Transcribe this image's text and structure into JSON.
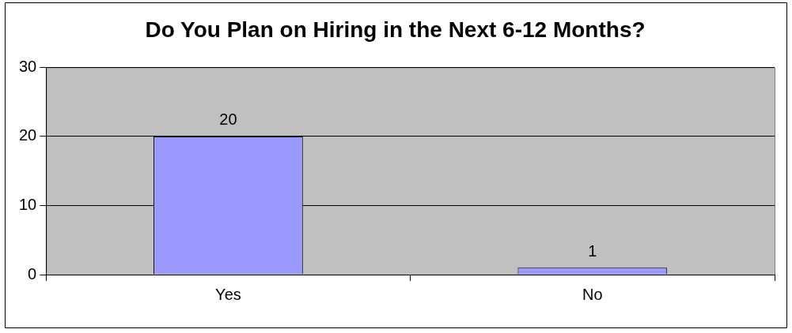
{
  "chart_data": {
    "type": "bar",
    "title": "Do You Plan on Hiring in the Next 6-12 Months?",
    "categories": [
      "Yes",
      "No"
    ],
    "values": [
      20,
      1
    ],
    "color": "#9999ff",
    "ylim": [
      0,
      30
    ],
    "yticks": [
      0,
      10,
      20,
      30
    ],
    "grid": "y",
    "legend": false,
    "data_labels": true
  }
}
